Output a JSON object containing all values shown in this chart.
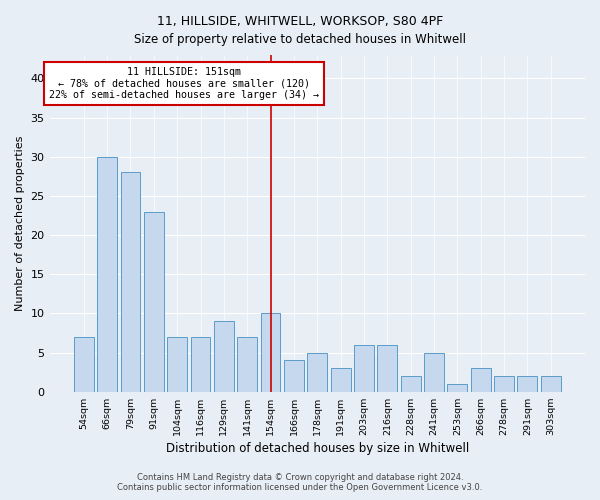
{
  "title1": "11, HILLSIDE, WHITWELL, WORKSOP, S80 4PF",
  "title2": "Size of property relative to detached houses in Whitwell",
  "xlabel": "Distribution of detached houses by size in Whitwell",
  "ylabel": "Number of detached properties",
  "categories": [
    "54sqm",
    "66sqm",
    "79sqm",
    "91sqm",
    "104sqm",
    "116sqm",
    "129sqm",
    "141sqm",
    "154sqm",
    "166sqm",
    "178sqm",
    "191sqm",
    "203sqm",
    "216sqm",
    "228sqm",
    "241sqm",
    "253sqm",
    "266sqm",
    "278sqm",
    "291sqm",
    "303sqm"
  ],
  "values": [
    7,
    30,
    28,
    23,
    7,
    7,
    9,
    7,
    10,
    4,
    5,
    3,
    6,
    6,
    2,
    5,
    1,
    3,
    2,
    2,
    2
  ],
  "bar_color": "#c5d8ed",
  "bar_edge_color": "#5b9cc9",
  "marker_index": 8,
  "marker_line_color": "#cc0000",
  "annotation_line1": "11 HILLSIDE: 151sqm",
  "annotation_line2": "← 78% of detached houses are smaller (120)",
  "annotation_line3": "22% of semi-detached houses are larger (34) →",
  "annotation_box_color": "#cc0000",
  "ylim": [
    0,
    43
  ],
  "yticks": [
    0,
    5,
    10,
    15,
    20,
    25,
    30,
    35,
    40
  ],
  "footer1": "Contains HM Land Registry data © Crown copyright and database right 2024.",
  "footer2": "Contains public sector information licensed under the Open Government Licence v3.0.",
  "bg_color": "#e8eef5",
  "plot_bg_color": "#e8eef5",
  "fig_width": 6.0,
  "fig_height": 5.0,
  "dpi": 100
}
